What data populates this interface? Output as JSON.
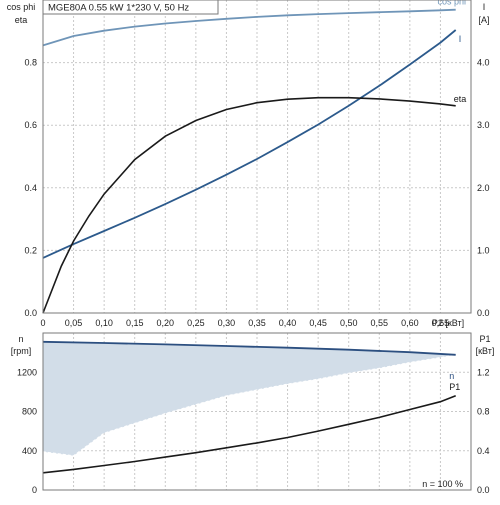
{
  "header": {
    "text": "MGE80A   0.55 kW   1*230 V, 50 Hz"
  },
  "colors": {
    "cos_phi": "#6f95b8",
    "current": "#2c5a8c",
    "eta": "#1a1a1a",
    "speed": "#2c4f80",
    "speed_fill": "#d2dde8",
    "p1": "#1a1a1a",
    "grid": "#c9c9c9",
    "frame": "#7a7a7a"
  },
  "chart_data": [
    {
      "type": "line",
      "panel": "upper",
      "left_axis_label_1": "cos phi",
      "left_axis_label_2": "eta",
      "right_axis_label_1": "I",
      "right_axis_label_2": "[A]",
      "x_unit_label": "P2 [кВт]",
      "xlim": [
        0,
        0.7
      ],
      "ylim_left": [
        0,
        1.0
      ],
      "ylim_right": [
        0,
        5.0
      ],
      "x_ticks": [
        "0",
        "0,05",
        "0,10",
        "0,15",
        "0,20",
        "0,25",
        "0,30",
        "0,35",
        "0,40",
        "0,45",
        "0,50",
        "0,55",
        "0,60",
        "0,65"
      ],
      "left_ticks": [
        "0.0",
        "0.2",
        "0.4",
        "0.6",
        "0.8"
      ],
      "right_ticks": [
        "0.0",
        "1.0",
        "2.0",
        "3.0",
        "4.0"
      ],
      "series": [
        {
          "name": "cos phi",
          "axis": "left",
          "x": [
            0,
            0.05,
            0.1,
            0.15,
            0.2,
            0.25,
            0.3,
            0.35,
            0.4,
            0.45,
            0.5,
            0.55,
            0.6,
            0.65,
            0.675
          ],
          "y": [
            0.855,
            0.885,
            0.902,
            0.915,
            0.925,
            0.933,
            0.94,
            0.946,
            0.951,
            0.955,
            0.958,
            0.961,
            0.964,
            0.967,
            0.969
          ]
        },
        {
          "name": "I",
          "axis": "right",
          "x": [
            0,
            0.05,
            0.1,
            0.15,
            0.2,
            0.25,
            0.3,
            0.35,
            0.4,
            0.45,
            0.5,
            0.55,
            0.6,
            0.65,
            0.675
          ],
          "y": [
            0.88,
            1.1,
            1.31,
            1.52,
            1.74,
            1.97,
            2.21,
            2.46,
            2.73,
            3.01,
            3.31,
            3.63,
            3.97,
            4.32,
            4.52
          ]
        },
        {
          "name": "eta",
          "axis": "left",
          "x": [
            0,
            0.03,
            0.05,
            0.075,
            0.1,
            0.15,
            0.2,
            0.25,
            0.3,
            0.35,
            0.4,
            0.45,
            0.5,
            0.55,
            0.6,
            0.65,
            0.675
          ],
          "y": [
            0.0,
            0.15,
            0.23,
            0.31,
            0.38,
            0.49,
            0.565,
            0.615,
            0.65,
            0.672,
            0.683,
            0.688,
            0.688,
            0.684,
            0.677,
            0.668,
            0.662
          ]
        }
      ]
    },
    {
      "type": "area",
      "panel": "lower",
      "left_axis_label_1": "n",
      "left_axis_label_2": "[rpm]",
      "right_axis_label_1": "P1",
      "right_axis_label_2": "[кВт]",
      "xlim": [
        0,
        0.7
      ],
      "ylim_left": [
        0,
        1600
      ],
      "ylim_right": [
        0,
        1.6
      ],
      "left_ticks": [
        "0",
        "400",
        "800",
        "1200"
      ],
      "right_ticks": [
        "0.0",
        "0.4",
        "0.8",
        "1.2"
      ],
      "note": "n = 100 %",
      "series": [
        {
          "name": "n",
          "role": "max",
          "axis": "left",
          "x": [
            0,
            0.1,
            0.2,
            0.3,
            0.4,
            0.5,
            0.6,
            0.675
          ],
          "y": [
            1510,
            1498,
            1484,
            1468,
            1450,
            1430,
            1404,
            1378
          ]
        },
        {
          "role": "min",
          "axis": "left",
          "x": [
            0,
            0.05,
            0.1,
            0.15,
            0.2,
            0.25,
            0.3,
            0.35,
            0.4,
            0.45,
            0.5,
            0.55,
            0.6,
            0.65,
            0.675
          ],
          "y": [
            390,
            350,
            580,
            680,
            780,
            870,
            960,
            1020,
            1080,
            1130,
            1190,
            1240,
            1300,
            1350,
            1378
          ]
        },
        {
          "name": "P1",
          "axis": "right",
          "x": [
            0,
            0.05,
            0.1,
            0.15,
            0.2,
            0.25,
            0.3,
            0.35,
            0.4,
            0.45,
            0.5,
            0.55,
            0.6,
            0.65,
            0.675
          ],
          "y": [
            0.175,
            0.21,
            0.25,
            0.29,
            0.335,
            0.38,
            0.43,
            0.48,
            0.535,
            0.6,
            0.67,
            0.74,
            0.82,
            0.9,
            0.96
          ]
        }
      ]
    }
  ]
}
